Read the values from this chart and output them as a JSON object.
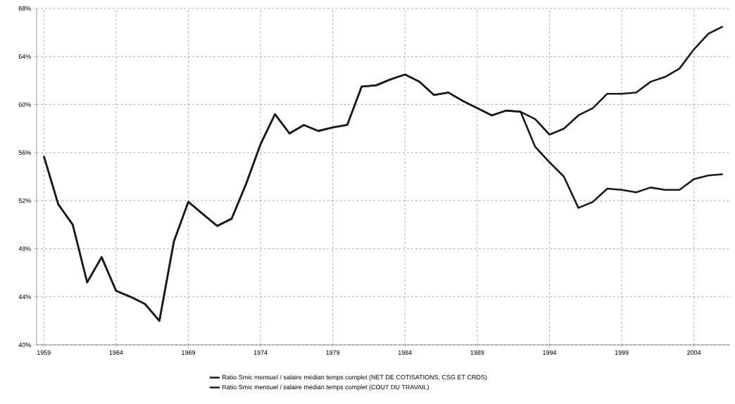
{
  "chart_data": {
    "type": "line",
    "x": [
      1959,
      1960,
      1961,
      1962,
      1963,
      1964,
      1965,
      1966,
      1967,
      1968,
      1969,
      1970,
      1971,
      1972,
      1973,
      1974,
      1975,
      1976,
      1977,
      1978,
      1979,
      1980,
      1981,
      1982,
      1983,
      1984,
      1985,
      1986,
      1987,
      1988,
      1989,
      1990,
      1991,
      1992,
      1993,
      1994,
      1995,
      1996,
      1997,
      1998,
      1999,
      2000,
      2001,
      2002,
      2003,
      2004,
      2005,
      2006
    ],
    "series": [
      {
        "name": "Ratio Smic mensuel / salaire médian temps complet (NET DE COTISATIONS, CSG ET CRDS)",
        "color": "#1a1a1a",
        "values": [
          55.7,
          51.7,
          50.0,
          45.2,
          47.3,
          44.5,
          44.0,
          43.4,
          42.0,
          48.6,
          51.9,
          50.9,
          49.9,
          50.5,
          53.4,
          56.7,
          59.2,
          57.6,
          58.3,
          57.8,
          58.1,
          58.3,
          61.5,
          61.6,
          62.1,
          62.5,
          61.9,
          60.8,
          61.0,
          60.3,
          59.7,
          59.1,
          59.5,
          59.4,
          58.8,
          57.5,
          58.0,
          59.1,
          59.7,
          60.9,
          60.9,
          61.0,
          61.9,
          62.3,
          63.0,
          64.6,
          65.9,
          66.5
        ]
      },
      {
        "name": "Ratio Smic mensuel / salaire médian temps complet (COUT DU TRAVAIL)",
        "color": "#1a1a1a",
        "values": [
          55.7,
          51.7,
          50.0,
          45.2,
          47.3,
          44.5,
          44.0,
          43.4,
          42.0,
          48.6,
          51.9,
          50.9,
          49.9,
          50.5,
          53.4,
          56.7,
          59.2,
          57.6,
          58.3,
          57.8,
          58.1,
          58.3,
          61.5,
          61.6,
          62.1,
          62.5,
          61.9,
          60.8,
          61.0,
          60.3,
          59.7,
          59.1,
          59.5,
          59.4,
          56.5,
          55.2,
          54.0,
          51.4,
          51.9,
          53.0,
          52.9,
          52.7,
          53.1,
          52.9,
          52.9,
          53.8,
          54.1,
          54.2
        ]
      }
    ],
    "xlim": [
      1958.5,
      2006.5
    ],
    "xticks": [
      1959,
      1964,
      1969,
      1974,
      1979,
      1984,
      1989,
      1994,
      1999,
      2004
    ],
    "ylim": [
      40,
      68
    ],
    "yticks": [
      {
        "value": 40,
        "label": "40%"
      },
      {
        "value": 44,
        "label": "44%"
      },
      {
        "value": 48,
        "label": "48%"
      },
      {
        "value": 52,
        "label": "52%"
      },
      {
        "value": 56,
        "label": "56%"
      },
      {
        "value": 60,
        "label": "60%"
      },
      {
        "value": 64,
        "label": "64%"
      },
      {
        "value": 68,
        "label": "68%"
      }
    ],
    "grid": true,
    "line_style": "solid",
    "marker": "none",
    "legend": "bottom"
  }
}
